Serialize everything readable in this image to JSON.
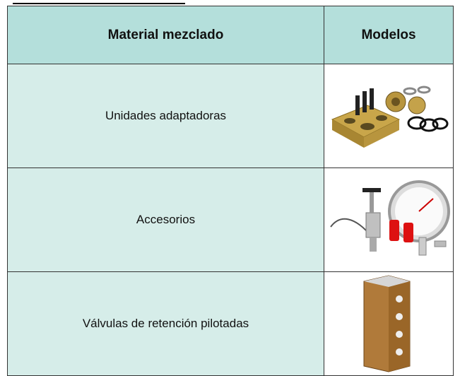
{
  "table": {
    "header": [
      "Material mezclado",
      "Modelos"
    ],
    "rows": [
      [
        "Unidades adaptadoras"
      ],
      [
        "Accesorios"
      ],
      [
        "Válvulas de retención pilotadas"
      ]
    ]
  }
}
